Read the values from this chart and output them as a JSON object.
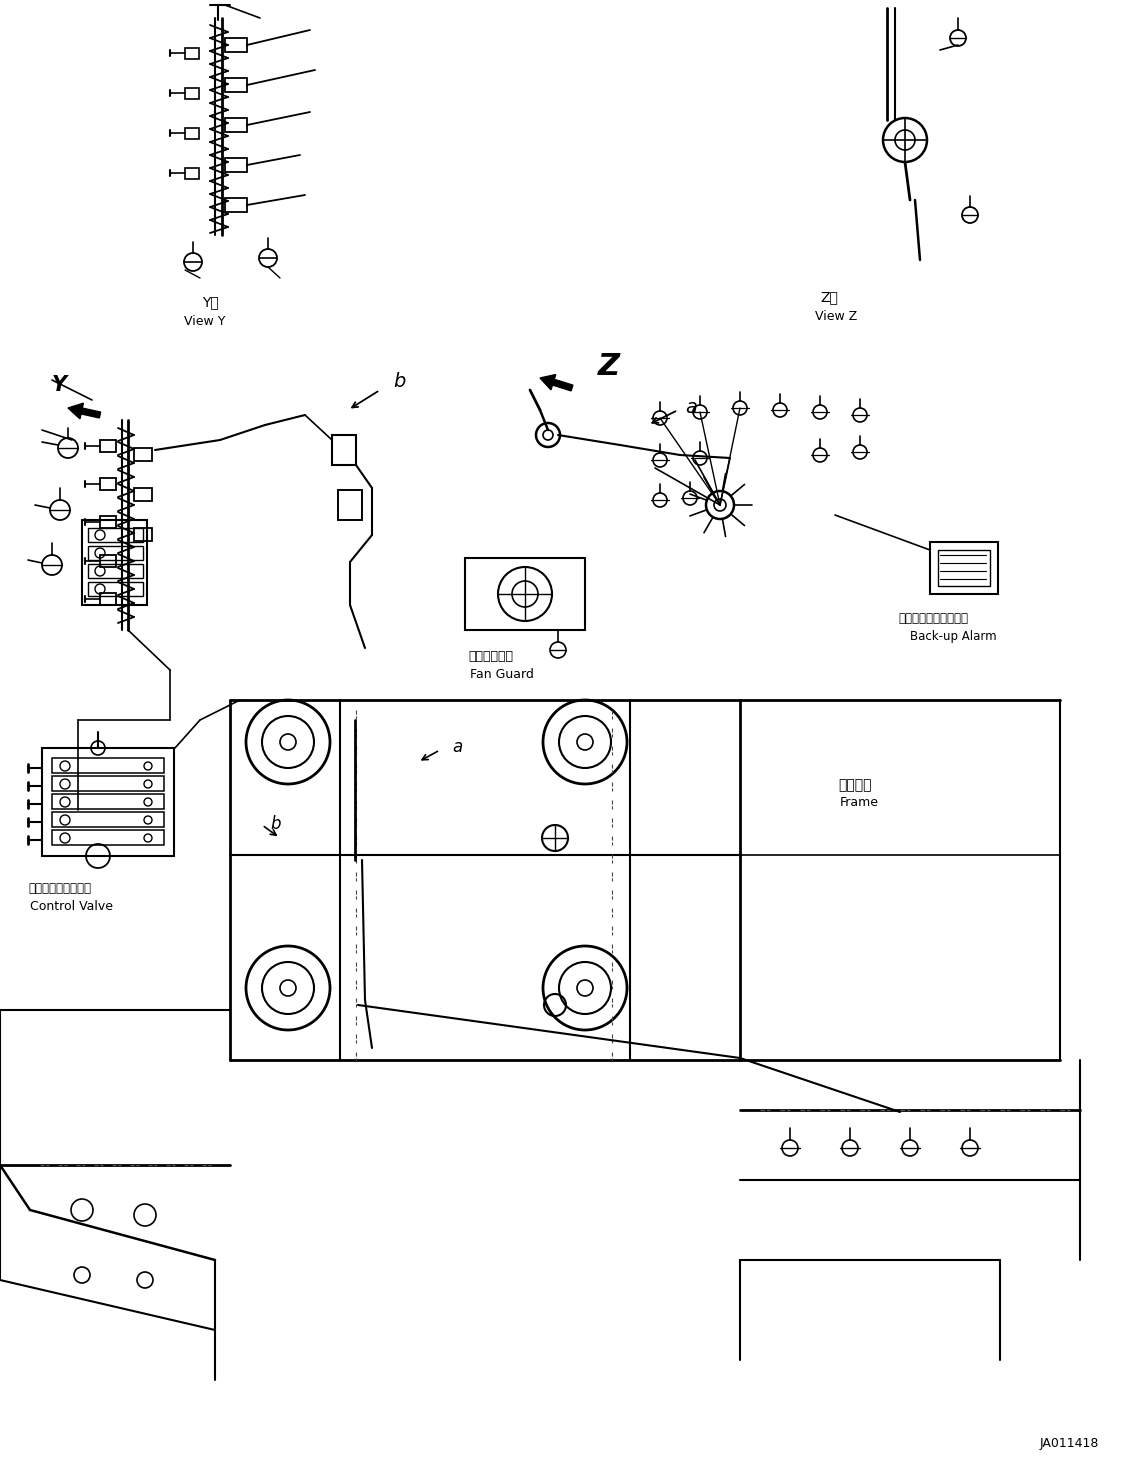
{
  "background_color": "#ffffff",
  "figure_width": 11.45,
  "figure_height": 14.62,
  "dpi": 100,
  "watermark": "JA011418",
  "labels": {
    "view_y_jp": "Y視",
    "view_y_en": "View Y",
    "view_z_jp": "Z視",
    "view_z_en": "View Z",
    "fan_guard_jp": "ファンガード",
    "fan_guard_en": "Fan Guard",
    "backup_alarm_jp": "バックアップアラーム",
    "backup_alarm_en": "Back-up Alarm",
    "control_valve_jp": "コントロールバルブ",
    "control_valve_en": "Control Valve",
    "frame_jp": "フレーム",
    "frame_en": "Frame",
    "label_a": "a",
    "label_b": "b",
    "label_Y": "Y",
    "label_Z": "Z"
  }
}
